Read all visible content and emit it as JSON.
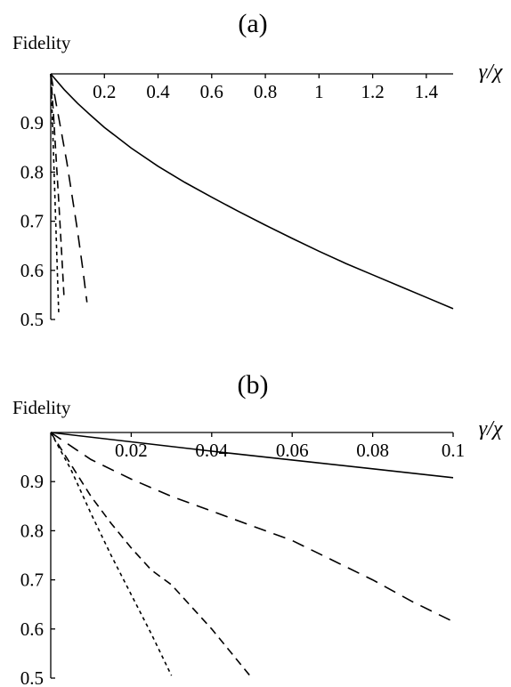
{
  "chart_data": [
    {
      "type": "line",
      "panel_label": "(a)",
      "ylabel": "Fidelity",
      "xlabel": "γ/χ",
      "xlim": [
        0,
        1.5
      ],
      "ylim": [
        0.5,
        1.0
      ],
      "xticks": [
        "0.2",
        "0.4",
        "0.6",
        "0.8",
        "1",
        "1.2",
        "1.4"
      ],
      "xtick_values": [
        0.2,
        0.4,
        0.6,
        0.8,
        1.0,
        1.2,
        1.4
      ],
      "yticks": [
        "0.9",
        "0.8",
        "0.7",
        "0.6",
        "0.5"
      ],
      "ytick_values": [
        0.9,
        0.8,
        0.7,
        0.6,
        0.5
      ],
      "grid": false,
      "series": [
        {
          "style": "solid",
          "x": [
            0,
            0.05,
            0.1,
            0.15,
            0.2,
            0.3,
            0.4,
            0.5,
            0.6,
            0.7,
            0.8,
            0.9,
            1.0,
            1.1,
            1.2,
            1.3,
            1.4,
            1.5
          ],
          "y": [
            1.0,
            0.968,
            0.94,
            0.915,
            0.891,
            0.849,
            0.812,
            0.779,
            0.749,
            0.72,
            0.692,
            0.665,
            0.639,
            0.614,
            0.591,
            0.568,
            0.545,
            0.522
          ]
        },
        {
          "style": "long-dash",
          "x": [
            0,
            0.02,
            0.04,
            0.06,
            0.08,
            0.1,
            0.12,
            0.135
          ],
          "y": [
            1.0,
            0.94,
            0.88,
            0.82,
            0.75,
            0.68,
            0.6,
            0.535
          ]
        },
        {
          "style": "medium-dash",
          "x": [
            0,
            0.01,
            0.02,
            0.03,
            0.04,
            0.05
          ],
          "y": [
            1.0,
            0.92,
            0.83,
            0.74,
            0.64,
            0.54
          ]
        },
        {
          "style": "short-dash",
          "x": [
            0,
            0.006,
            0.012,
            0.018,
            0.024,
            0.03
          ],
          "y": [
            1.0,
            0.91,
            0.81,
            0.71,
            0.61,
            0.51
          ]
        }
      ]
    },
    {
      "type": "line",
      "panel_label": "(b)",
      "ylabel": "Fidelity",
      "xlabel": "γ/χ",
      "xlim": [
        0,
        0.1
      ],
      "ylim": [
        0.5,
        1.0
      ],
      "xticks": [
        "0.02",
        "0.04",
        "0.06",
        "0.08",
        "0.1"
      ],
      "xtick_values": [
        0.02,
        0.04,
        0.06,
        0.08,
        0.1
      ],
      "yticks": [
        "0.9",
        "0.8",
        "0.7",
        "0.6",
        "0.5"
      ],
      "ytick_values": [
        0.9,
        0.8,
        0.7,
        0.6,
        0.5
      ],
      "grid": false,
      "series": [
        {
          "style": "solid",
          "x": [
            0,
            0.02,
            0.04,
            0.06,
            0.08,
            0.1
          ],
          "y": [
            1.0,
            0.981,
            0.962,
            0.944,
            0.926,
            0.908
          ]
        },
        {
          "style": "long-dash",
          "x": [
            0,
            0.01,
            0.02,
            0.03,
            0.04,
            0.05,
            0.06,
            0.07,
            0.08,
            0.09,
            0.1
          ],
          "y": [
            1.0,
            0.945,
            0.905,
            0.87,
            0.84,
            0.81,
            0.78,
            0.74,
            0.7,
            0.655,
            0.615
          ]
        },
        {
          "style": "medium-dash",
          "x": [
            0,
            0.005,
            0.01,
            0.015,
            0.02,
            0.025,
            0.03,
            0.035,
            0.04,
            0.045,
            0.05
          ],
          "y": [
            1.0,
            0.935,
            0.87,
            0.815,
            0.765,
            0.72,
            0.69,
            0.645,
            0.6,
            0.55,
            0.5
          ]
        },
        {
          "style": "short-dash",
          "x": [
            0,
            0.005,
            0.01,
            0.015,
            0.02,
            0.025,
            0.03
          ],
          "y": [
            1.0,
            0.925,
            0.835,
            0.75,
            0.67,
            0.59,
            0.505
          ]
        }
      ]
    }
  ]
}
